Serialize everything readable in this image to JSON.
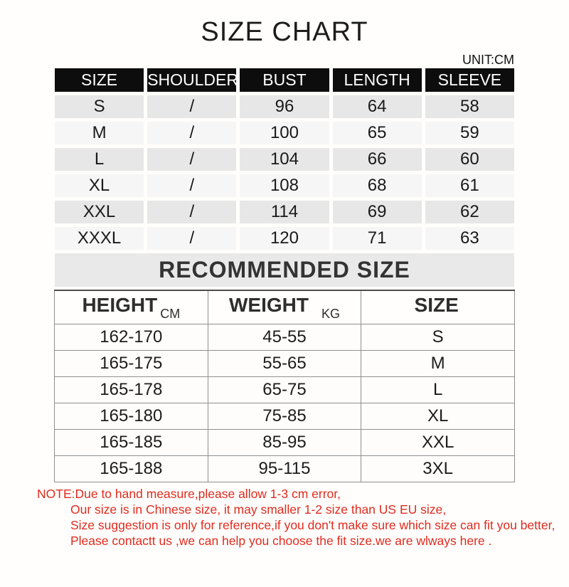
{
  "page": {
    "title": "SIZE CHART",
    "unit_label": "UNIT:CM"
  },
  "size_table": {
    "headers": [
      "SIZE",
      "SHOULDER",
      "BUST",
      "LENGTH",
      "SLEEVE"
    ],
    "rows": [
      [
        "S",
        "/",
        "96",
        "64",
        "58"
      ],
      [
        "M",
        "/",
        "100",
        "65",
        "59"
      ],
      [
        "L",
        "/",
        "104",
        "66",
        "60"
      ],
      [
        "XL",
        "/",
        "108",
        "68",
        "61"
      ],
      [
        "XXL",
        "/",
        "114",
        "69",
        "62"
      ],
      [
        "XXXL",
        "/",
        "120",
        "71",
        "63"
      ]
    ]
  },
  "recommended": {
    "heading": "RECOMMENDED SIZE",
    "headers": [
      {
        "label": "HEIGHT",
        "unit": "CM"
      },
      {
        "label": "WEIGHT",
        "unit": "KG"
      },
      {
        "label": "SIZE",
        "unit": ""
      }
    ],
    "rows": [
      [
        "162-170",
        "45-55",
        "S"
      ],
      [
        "165-175",
        "55-65",
        "M"
      ],
      [
        "165-178",
        "65-75",
        "L"
      ],
      [
        "165-180",
        "75-85",
        "XL"
      ],
      [
        "165-185",
        "85-95",
        "XXL"
      ],
      [
        "165-188",
        "95-115",
        "3XL"
      ]
    ]
  },
  "note": {
    "lines": [
      "NOTE:Due to hand measure,please allow 1-3 cm error,",
      "Our size is in Chinese size, it may smaller 1-2 size than US EU size,",
      "Size suggestion is only for reference,if you don't make sure which size can fit you better,",
      "Please contactt us ,we can help you choose the fit size.we are wlways here ."
    ]
  },
  "colors": {
    "background": "#fffefc",
    "table_header_bg": "#0d0d0d",
    "table_header_text": "#ffffff",
    "row_gray": "#e7e7e7",
    "row_light": "#f6f6f6",
    "band_bg": "#e9e9e9",
    "border_gray": "#8f8f8f",
    "note_red": "#e02b1e"
  }
}
